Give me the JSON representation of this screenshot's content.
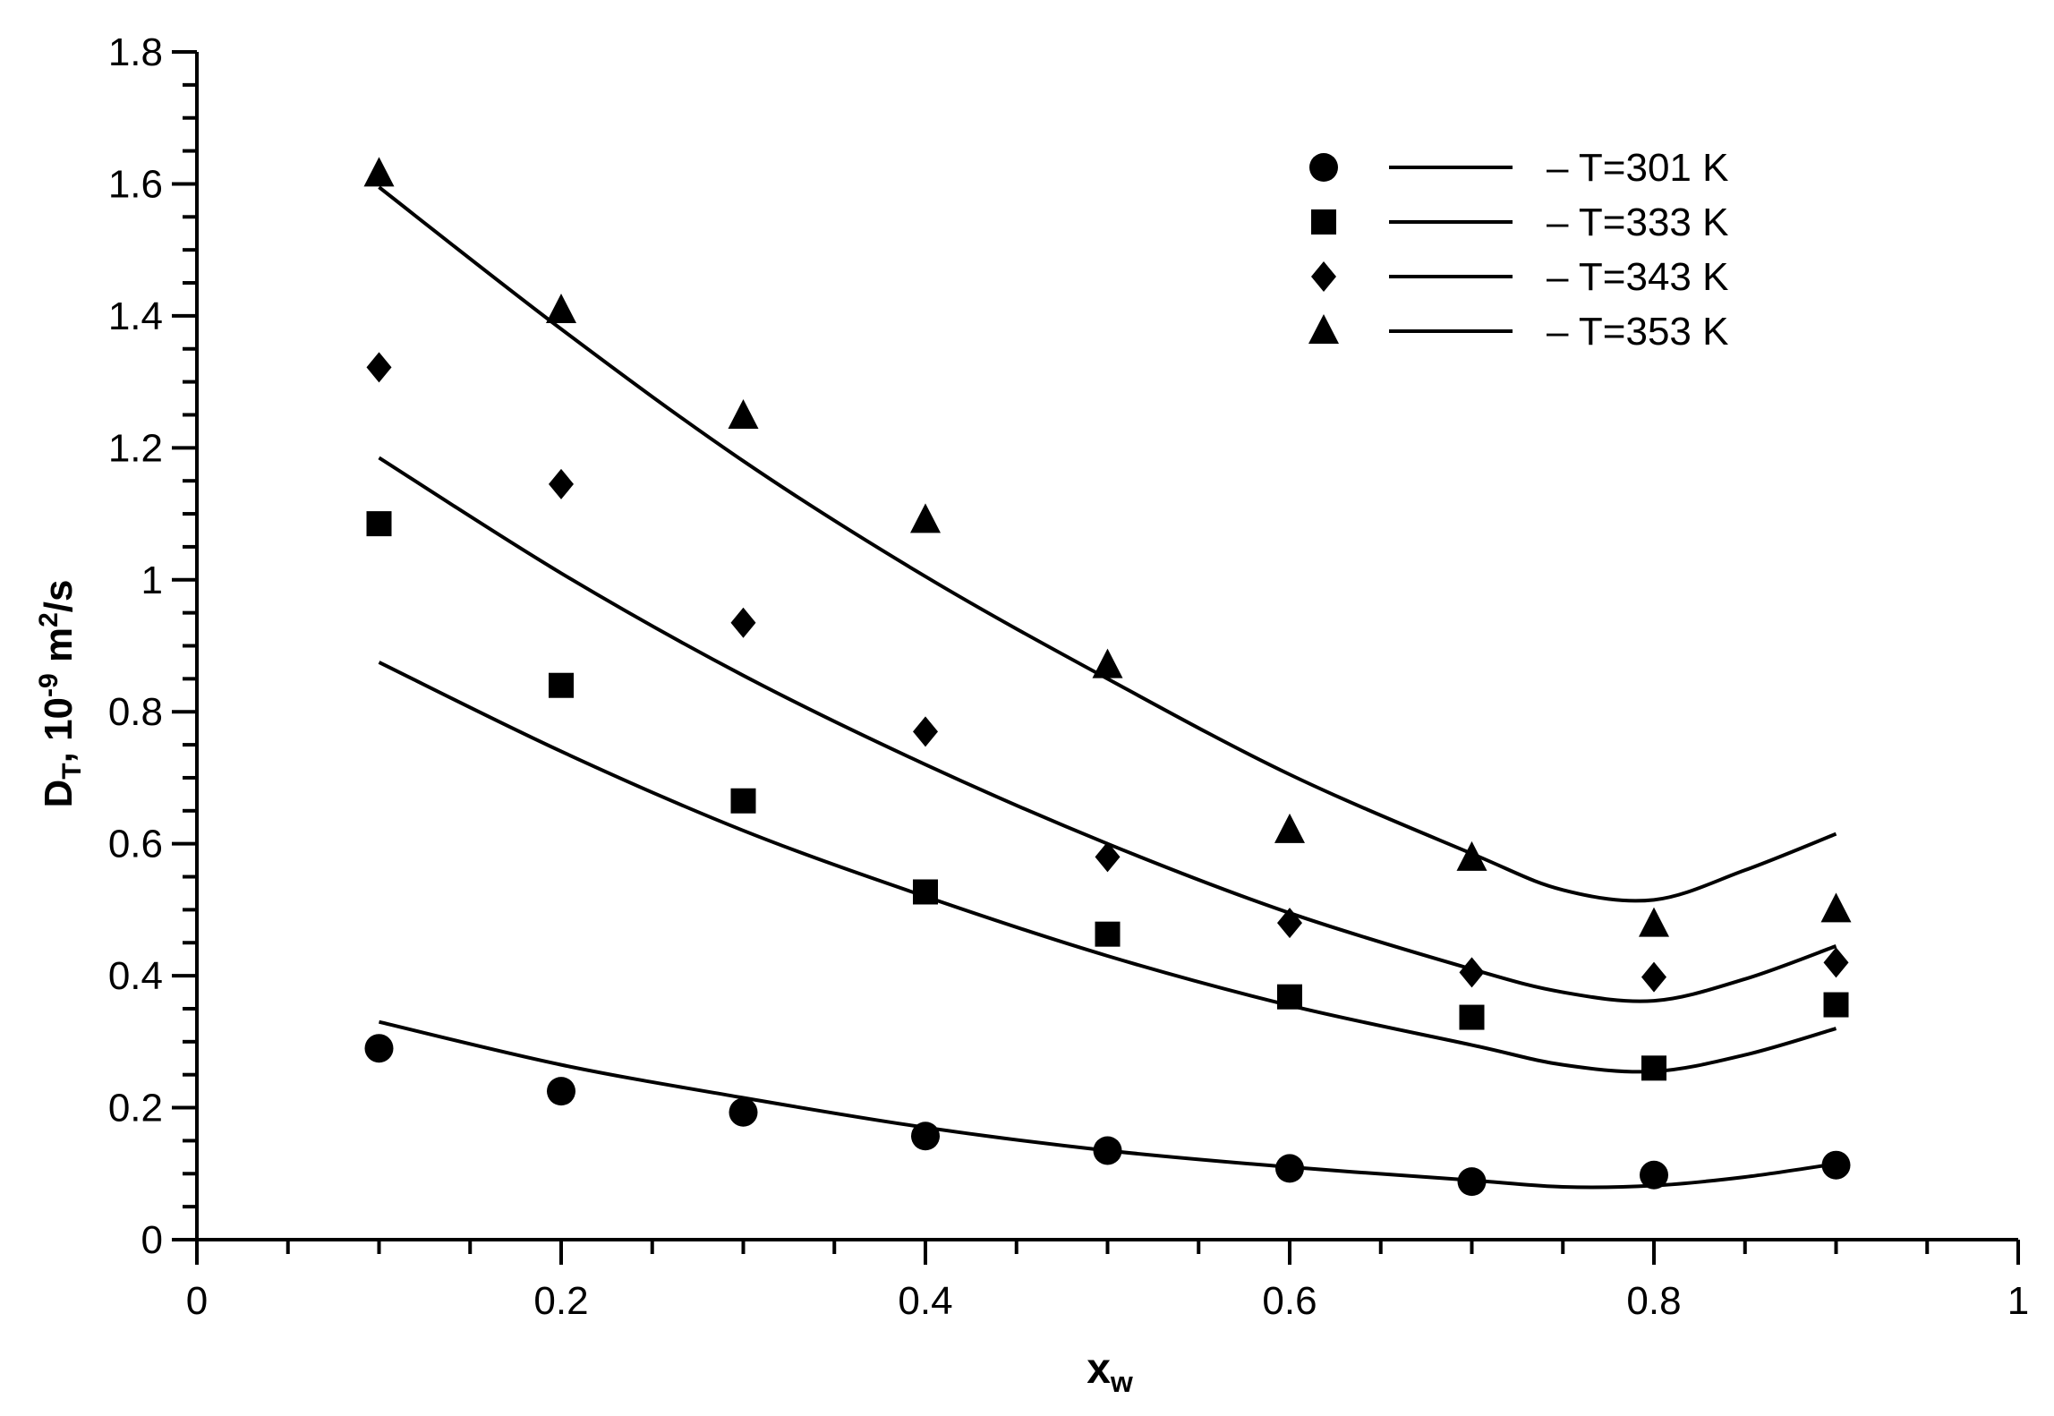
{
  "chart_data": {
    "type": "scatter",
    "xlabel": {
      "main": "x",
      "sub": "w"
    },
    "ylabel": {
      "main": "D",
      "sub": "T",
      "rest": ", 10",
      "sup": "-9",
      "unit_main": " m",
      "unit_sup": "2",
      "unit_rest": "/s"
    },
    "xlim": [
      0,
      1
    ],
    "ylim": [
      0,
      1.8
    ],
    "x_ticks": [
      "0",
      "0.2",
      "0.4",
      "0.6",
      "0.8",
      "1"
    ],
    "y_ticks": [
      "0",
      "0.2",
      "0.4",
      "0.6",
      "0.8",
      "1",
      "1.2",
      "1.4",
      "1.6",
      "1.8"
    ],
    "grid": false,
    "legend_position": "top-right",
    "series": [
      {
        "name": "– T=301 K",
        "marker": "circle",
        "points_x": [
          0.1,
          0.2,
          0.3,
          0.4,
          0.5,
          0.6,
          0.7,
          0.8,
          0.9
        ],
        "points_y": [
          0.29,
          0.225,
          0.193,
          0.157,
          0.135,
          0.108,
          0.088,
          0.098,
          0.113
        ],
        "line_x": [
          0.1,
          0.2,
          0.3,
          0.4,
          0.5,
          0.6,
          0.7,
          0.75,
          0.8,
          0.85,
          0.9
        ],
        "line_y": [
          0.33,
          0.265,
          0.215,
          0.17,
          0.135,
          0.11,
          0.09,
          0.08,
          0.082,
          0.095,
          0.115
        ]
      },
      {
        "name": "– T=333 K",
        "marker": "square",
        "points_x": [
          0.1,
          0.2,
          0.3,
          0.4,
          0.5,
          0.6,
          0.7,
          0.8,
          0.9
        ],
        "points_y": [
          1.085,
          0.84,
          0.665,
          0.527,
          0.463,
          0.368,
          0.337,
          0.26,
          0.356
        ],
        "line_x": [
          0.1,
          0.2,
          0.3,
          0.4,
          0.5,
          0.6,
          0.7,
          0.75,
          0.8,
          0.85,
          0.9
        ],
        "line_y": [
          0.875,
          0.74,
          0.62,
          0.52,
          0.43,
          0.355,
          0.295,
          0.265,
          0.255,
          0.28,
          0.32
        ]
      },
      {
        "name": "– T=343 K",
        "marker": "diamond",
        "points_x": [
          0.1,
          0.2,
          0.3,
          0.4,
          0.5,
          0.6,
          0.7,
          0.8,
          0.9
        ],
        "points_y": [
          1.322,
          1.145,
          0.935,
          0.77,
          0.58,
          0.48,
          0.405,
          0.398,
          0.42
        ],
        "line_x": [
          0.1,
          0.2,
          0.3,
          0.4,
          0.5,
          0.6,
          0.7,
          0.75,
          0.8,
          0.85,
          0.9
        ],
        "line_y": [
          1.185,
          1.01,
          0.855,
          0.72,
          0.6,
          0.495,
          0.41,
          0.375,
          0.362,
          0.395,
          0.445
        ]
      },
      {
        "name": "– T=353 K",
        "marker": "triangle",
        "points_x": [
          0.1,
          0.2,
          0.3,
          0.4,
          0.5,
          0.6,
          0.7,
          0.8,
          0.9
        ],
        "points_y": [
          1.615,
          1.408,
          1.248,
          1.09,
          0.87,
          0.62,
          0.578,
          0.478,
          0.5
        ],
        "line_x": [
          0.1,
          0.2,
          0.3,
          0.4,
          0.5,
          0.6,
          0.7,
          0.75,
          0.8,
          0.85,
          0.9
        ],
        "line_y": [
          1.595,
          1.38,
          1.18,
          1.005,
          0.85,
          0.705,
          0.585,
          0.53,
          0.515,
          0.56,
          0.615
        ]
      }
    ]
  }
}
